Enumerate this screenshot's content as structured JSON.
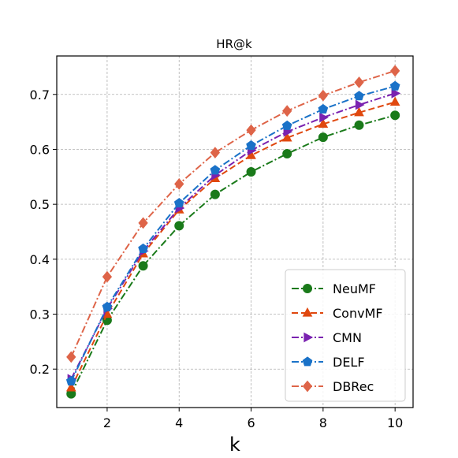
{
  "chart_data": {
    "type": "line",
    "title": "HR@k",
    "xlabel": "k",
    "ylabel": "",
    "xlim": [
      0.6,
      10.5
    ],
    "ylim": [
      0.13,
      0.77
    ],
    "xticks": [
      "2",
      "4",
      "6",
      "8",
      "10"
    ],
    "yticks": [
      "0.2",
      "0.3",
      "0.4",
      "0.5",
      "0.6",
      "0.7"
    ],
    "grid": true,
    "legend_position": "bottom-right",
    "x": [
      1,
      2,
      3,
      4,
      5,
      6,
      7,
      8,
      9,
      10
    ],
    "series": [
      {
        "name": "NeuMF",
        "color": "#1a7a1a",
        "marker": "circle",
        "dash": "dashdot",
        "values": [
          0.155,
          0.289,
          0.388,
          0.461,
          0.518,
          0.559,
          0.592,
          0.622,
          0.644,
          0.662
        ]
      },
      {
        "name": "ConvMF",
        "color": "#e0480f",
        "marker": "triangle-up",
        "dash": "dashed",
        "values": [
          0.166,
          0.3,
          0.41,
          0.49,
          0.547,
          0.589,
          0.621,
          0.646,
          0.667,
          0.686
        ]
      },
      {
        "name": "CMN",
        "color": "#7a22b0",
        "marker": "triangle-right",
        "dash": "dashdot",
        "values": [
          0.182,
          0.31,
          0.415,
          0.493,
          0.553,
          0.598,
          0.632,
          0.658,
          0.681,
          0.702
        ]
      },
      {
        "name": "DELF",
        "color": "#1a72c8",
        "marker": "pentagon",
        "dash": "dashdot",
        "values": [
          0.178,
          0.313,
          0.419,
          0.502,
          0.562,
          0.607,
          0.643,
          0.673,
          0.697,
          0.715
        ]
      },
      {
        "name": "DBRec",
        "color": "#de6448",
        "marker": "diamond",
        "dash": "dashdot",
        "values": [
          0.222,
          0.368,
          0.466,
          0.537,
          0.594,
          0.635,
          0.67,
          0.698,
          0.722,
          0.743
        ]
      }
    ]
  }
}
